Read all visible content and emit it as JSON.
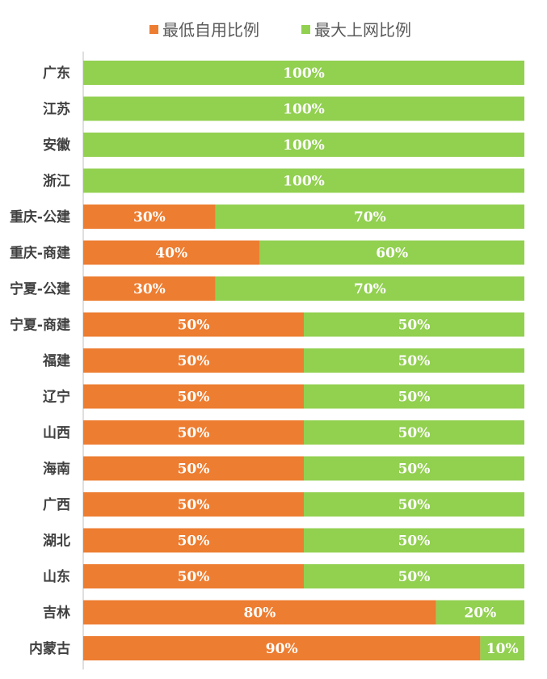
{
  "chart_data": {
    "type": "bar",
    "orientation": "horizontal",
    "stacked": true,
    "categories": [
      "广东",
      "江苏",
      "安徽",
      "浙江",
      "重庆-公建",
      "重庆-商建",
      "宁夏-公建",
      "宁夏-商建",
      "福建",
      "辽宁",
      "山西",
      "海南",
      "广西",
      "湖北",
      "山东",
      "吉林",
      "内蒙古"
    ],
    "series": [
      {
        "name": "最低自用比例",
        "color": "#ED7D31",
        "values": [
          0,
          0,
          0,
          0,
          30,
          40,
          30,
          50,
          50,
          50,
          50,
          50,
          50,
          50,
          50,
          80,
          90
        ]
      },
      {
        "name": "最大上网比例",
        "color": "#92D050",
        "values": [
          100,
          100,
          100,
          100,
          70,
          60,
          70,
          50,
          50,
          50,
          50,
          50,
          50,
          50,
          50,
          20,
          10
        ]
      }
    ],
    "value_suffix": "%",
    "xlim": [
      0,
      100
    ],
    "legend_position": "top",
    "grid": false
  }
}
